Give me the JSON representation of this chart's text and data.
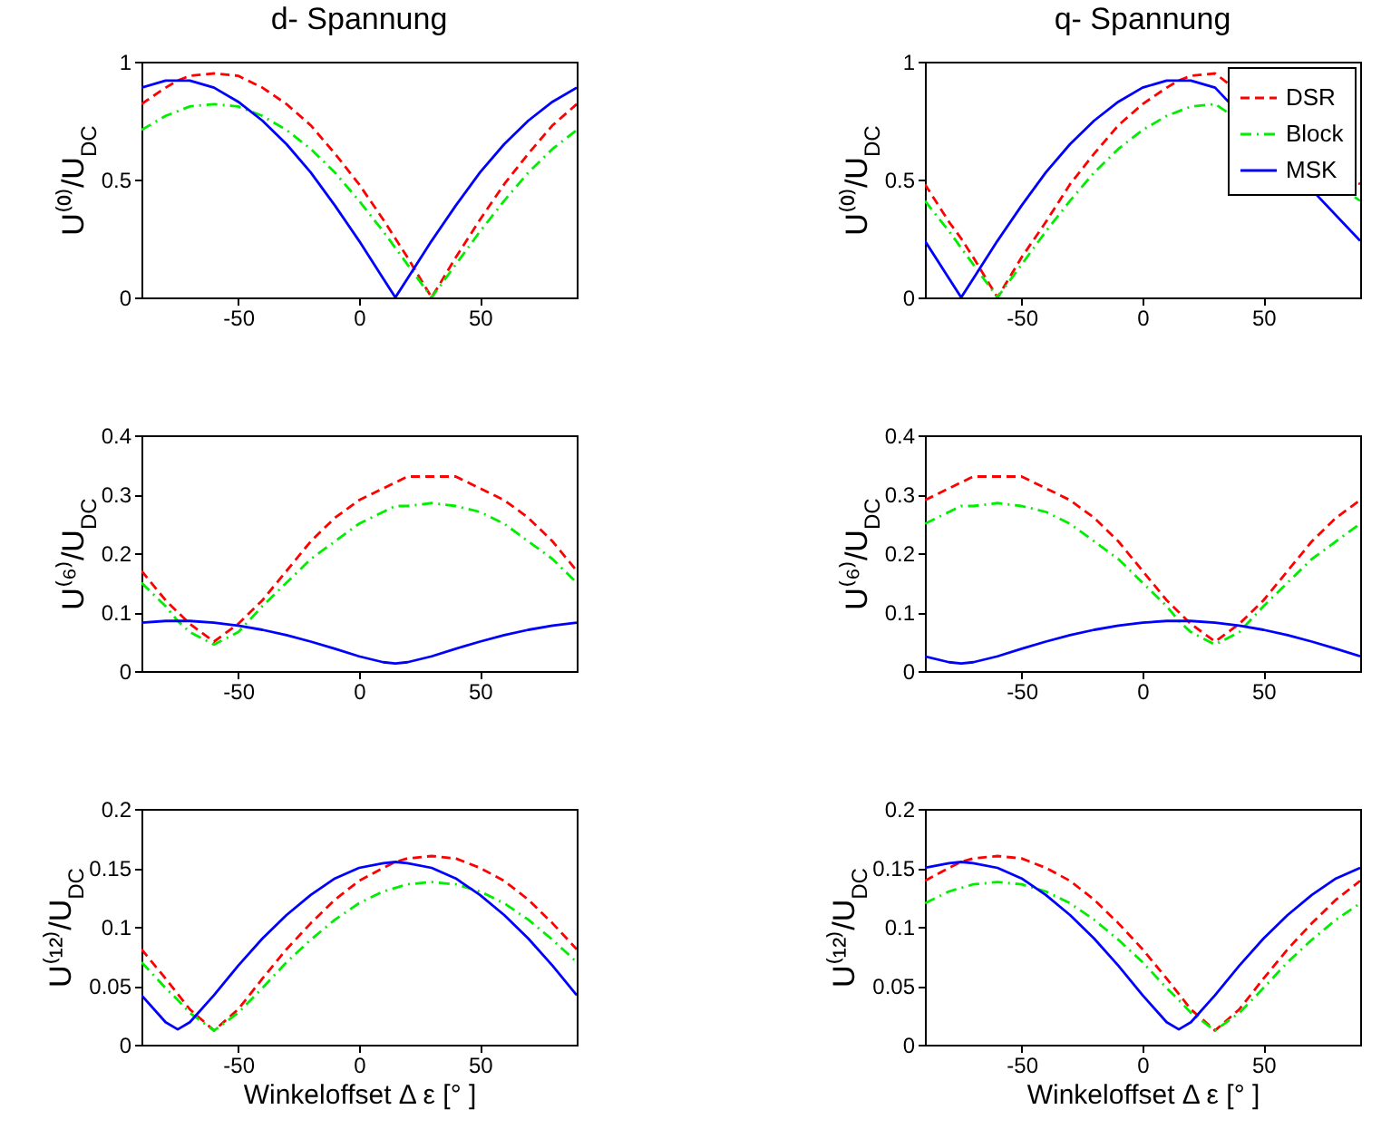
{
  "chart_data": [
    {
      "type": "line",
      "title": "d- Spannung",
      "ylabel": "U⁽⁰⁾/U$_{DC}$",
      "x": [
        -90,
        -80,
        -75,
        -70,
        -60,
        -50,
        -40,
        -30,
        -20,
        -10,
        0,
        10,
        15,
        20,
        30,
        40,
        50,
        60,
        70,
        80,
        90
      ],
      "xlim": [
        -90,
        90
      ],
      "xticks": [
        -50,
        0,
        50
      ],
      "ylim": [
        0,
        1
      ],
      "yticks": [
        0,
        0.5,
        1
      ],
      "series": [
        {
          "color": "#ff0000",
          "line_style": "dashed",
          "values": [
            0.82,
            0.89,
            0.92,
            0.94,
            0.95,
            0.94,
            0.89,
            0.82,
            0.73,
            0.61,
            0.48,
            0.33,
            0.25,
            0.17,
            0,
            0.17,
            0.33,
            0.48,
            0.61,
            0.73,
            0.82
          ]
        },
        {
          "color": "#00ee00",
          "line_style": "dotted",
          "values": [
            0.71,
            0.77,
            0.79,
            0.81,
            0.82,
            0.81,
            0.77,
            0.71,
            0.63,
            0.53,
            0.41,
            0.28,
            0.21,
            0.14,
            0,
            0.14,
            0.28,
            0.41,
            0.53,
            0.63,
            0.71
          ]
        },
        {
          "color": "#0000ff",
          "line_style": "solid",
          "values": [
            0.89,
            0.92,
            0.92,
            0.92,
            0.89,
            0.83,
            0.75,
            0.65,
            0.53,
            0.39,
            0.24,
            0.08,
            0,
            0.08,
            0.24,
            0.39,
            0.53,
            0.65,
            0.75,
            0.83,
            0.89
          ]
        }
      ]
    },
    {
      "type": "line",
      "title": "q- Spannung",
      "ylabel": "U⁽⁰⁾/U$_{DC}$",
      "legend": "top right",
      "x": [
        -90,
        -80,
        -75,
        -70,
        -60,
        -50,
        -40,
        -30,
        -20,
        -10,
        0,
        10,
        15,
        20,
        30,
        40,
        50,
        60,
        70,
        80,
        90
      ],
      "xlim": [
        -90,
        90
      ],
      "xticks": [
        -50,
        0,
        50
      ],
      "ylim": [
        0,
        1
      ],
      "yticks": [
        0,
        0.5,
        1
      ],
      "series": [
        {
          "name": "DSR",
          "color": "#ff0000",
          "line_style": "dashed",
          "values": [
            0.48,
            0.32,
            0.25,
            0.17,
            0,
            0.17,
            0.32,
            0.48,
            0.61,
            0.73,
            0.82,
            0.89,
            0.92,
            0.94,
            0.95,
            null,
            null,
            null,
            null,
            null,
            0.48
          ]
        },
        {
          "name": "Block",
          "color": "#00ee00",
          "line_style": "dotted",
          "values": [
            0.41,
            0.28,
            0.21,
            0.14,
            0,
            0.14,
            0.28,
            0.41,
            0.53,
            0.63,
            0.71,
            0.77,
            0.79,
            0.81,
            0.82,
            null,
            null,
            null,
            null,
            null,
            0.41
          ]
        },
        {
          "name": "MSK",
          "color": "#0000ff",
          "line_style": "solid",
          "values": [
            0.24,
            0.08,
            0,
            0.08,
            0.24,
            0.39,
            0.53,
            0.65,
            0.75,
            0.83,
            0.89,
            0.92,
            0.92,
            0.92,
            0.89,
            null,
            null,
            null,
            null,
            null,
            0.24
          ]
        }
      ]
    },
    {
      "type": "line",
      "ylabel": "U⁽⁶⁾/U$_{DC}$",
      "x": [
        -90,
        -80,
        -75,
        -70,
        -60,
        -50,
        -40,
        -30,
        -20,
        -10,
        0,
        10,
        15,
        20,
        30,
        40,
        50,
        60,
        70,
        80,
        90
      ],
      "xlim": [
        -90,
        90
      ],
      "xticks": [
        -50,
        0,
        50
      ],
      "ylim": [
        0,
        0.4
      ],
      "yticks": [
        0,
        0.1,
        0.2,
        0.3,
        0.4
      ],
      "series": [
        {
          "color": "#ff0000",
          "line_style": "dashed",
          "values": [
            0.17,
            0.12,
            0.1,
            0.08,
            0.05,
            0.08,
            0.12,
            0.17,
            0.22,
            0.26,
            0.29,
            0.31,
            0.32,
            0.33,
            0.33,
            0.33,
            0.31,
            0.29,
            0.26,
            0.22,
            0.17
          ]
        },
        {
          "color": "#00ee00",
          "line_style": "dotted",
          "values": [
            0.15,
            0.11,
            0.085,
            0.066,
            0.045,
            0.066,
            0.11,
            0.15,
            0.19,
            0.22,
            0.25,
            0.27,
            0.28,
            0.28,
            0.285,
            0.28,
            0.27,
            0.25,
            0.22,
            0.19,
            0.15
          ]
        },
        {
          "color": "#0000ff",
          "line_style": "solid",
          "values": [
            0.082,
            0.085,
            0.085,
            0.085,
            0.082,
            0.077,
            0.07,
            0.061,
            0.05,
            0.038,
            0.025,
            0.015,
            0.013,
            0.015,
            0.025,
            0.038,
            0.05,
            0.061,
            0.07,
            0.077,
            0.082
          ]
        }
      ]
    },
    {
      "type": "line",
      "ylabel": "U⁽⁶⁾/U$_{DC}$",
      "x": [
        -90,
        -80,
        -75,
        -70,
        -60,
        -50,
        -40,
        -30,
        -20,
        -10,
        0,
        10,
        15,
        20,
        30,
        40,
        50,
        60,
        70,
        80,
        90
      ],
      "xlim": [
        -90,
        90
      ],
      "xticks": [
        -50,
        0,
        50
      ],
      "ylim": [
        0,
        0.4
      ],
      "yticks": [
        0,
        0.1,
        0.2,
        0.3,
        0.4
      ],
      "series": [
        {
          "color": "#ff0000",
          "line_style": "dashed",
          "values": [
            0.29,
            0.31,
            0.32,
            0.33,
            0.33,
            0.33,
            0.31,
            0.29,
            0.26,
            0.22,
            0.17,
            0.12,
            0.1,
            0.08,
            0.05,
            0.08,
            0.12,
            0.17,
            0.22,
            0.26,
            0.29
          ]
        },
        {
          "color": "#00ee00",
          "line_style": "dotted",
          "values": [
            0.25,
            0.27,
            0.28,
            0.28,
            0.285,
            0.28,
            0.27,
            0.25,
            0.22,
            0.19,
            0.15,
            0.11,
            0.085,
            0.066,
            0.045,
            0.066,
            0.11,
            0.15,
            0.19,
            0.22,
            0.25
          ]
        },
        {
          "color": "#0000ff",
          "line_style": "solid",
          "values": [
            0.025,
            0.015,
            0.013,
            0.015,
            0.025,
            0.038,
            0.05,
            0.061,
            0.07,
            0.077,
            0.082,
            0.085,
            0.085,
            0.085,
            0.082,
            0.077,
            0.07,
            0.061,
            0.05,
            0.038,
            0.025
          ]
        }
      ]
    },
    {
      "type": "line",
      "ylabel": "U⁽¹²⁾/U$_{DC}$",
      "xlabel": "Winkeloffset Δ ε [° ]",
      "x": [
        -90,
        -80,
        -75,
        -70,
        -60,
        -50,
        -40,
        -30,
        -20,
        -10,
        0,
        10,
        15,
        20,
        30,
        40,
        50,
        60,
        70,
        80,
        90
      ],
      "xlim": [
        -90,
        90
      ],
      "xticks": [
        -50,
        0,
        50
      ],
      "ylim": [
        0,
        0.2
      ],
      "yticks": [
        0,
        0.05,
        0.1,
        0.15,
        0.2
      ],
      "series": [
        {
          "color": "#ff0000",
          "line_style": "dashed",
          "values": [
            0.081,
            0.056,
            0.043,
            0.03,
            0.012,
            0.03,
            0.056,
            0.081,
            0.103,
            0.123,
            0.139,
            0.15,
            0.155,
            0.158,
            0.16,
            0.158,
            0.15,
            0.139,
            0.123,
            0.103,
            0.081
          ]
        },
        {
          "color": "#00ee00",
          "line_style": "dotted",
          "values": [
            0.07,
            0.048,
            0.038,
            0.027,
            0.012,
            0.027,
            0.048,
            0.07,
            0.089,
            0.106,
            0.12,
            0.13,
            0.133,
            0.136,
            0.138,
            0.136,
            0.13,
            0.12,
            0.106,
            0.089,
            0.07
          ]
        },
        {
          "color": "#0000ff",
          "line_style": "solid",
          "values": [
            0.042,
            0.019,
            0.013,
            0.019,
            0.042,
            0.067,
            0.09,
            0.11,
            0.127,
            0.141,
            0.15,
            0.154,
            0.155,
            0.154,
            0.15,
            0.141,
            0.127,
            0.11,
            0.09,
            0.067,
            0.042
          ]
        }
      ]
    },
    {
      "type": "line",
      "ylabel": "U⁽¹²⁾/U$_{DC}$",
      "xlabel": "Winkeloffset Δ ε [° ]",
      "x": [
        -90,
        -80,
        -75,
        -70,
        -60,
        -50,
        -40,
        -30,
        -20,
        -10,
        0,
        10,
        15,
        20,
        30,
        40,
        50,
        60,
        70,
        80,
        90
      ],
      "xlim": [
        -90,
        90
      ],
      "xticks": [
        -50,
        0,
        50
      ],
      "ylim": [
        0,
        0.2
      ],
      "yticks": [
        0,
        0.05,
        0.1,
        0.15,
        0.2
      ],
      "series": [
        {
          "color": "#ff0000",
          "line_style": "dashed",
          "values": [
            0.139,
            0.15,
            0.155,
            0.158,
            0.16,
            0.158,
            0.15,
            0.139,
            0.123,
            0.103,
            0.081,
            0.056,
            0.043,
            0.03,
            0.012,
            0.03,
            0.056,
            0.081,
            0.103,
            0.123,
            0.139
          ]
        },
        {
          "color": "#00ee00",
          "line_style": "dotted",
          "values": [
            0.12,
            0.13,
            0.133,
            0.136,
            0.138,
            0.136,
            0.13,
            0.12,
            0.106,
            0.089,
            0.07,
            0.048,
            0.038,
            0.027,
            0.012,
            0.027,
            0.048,
            0.07,
            0.089,
            0.106,
            0.12
          ]
        },
        {
          "color": "#0000ff",
          "line_style": "solid",
          "values": [
            0.15,
            0.154,
            0.155,
            0.154,
            0.15,
            0.141,
            0.127,
            0.11,
            0.09,
            0.067,
            0.042,
            0.019,
            0.013,
            0.019,
            0.042,
            0.067,
            0.09,
            0.11,
            0.127,
            0.141,
            0.15
          ]
        }
      ]
    }
  ]
}
